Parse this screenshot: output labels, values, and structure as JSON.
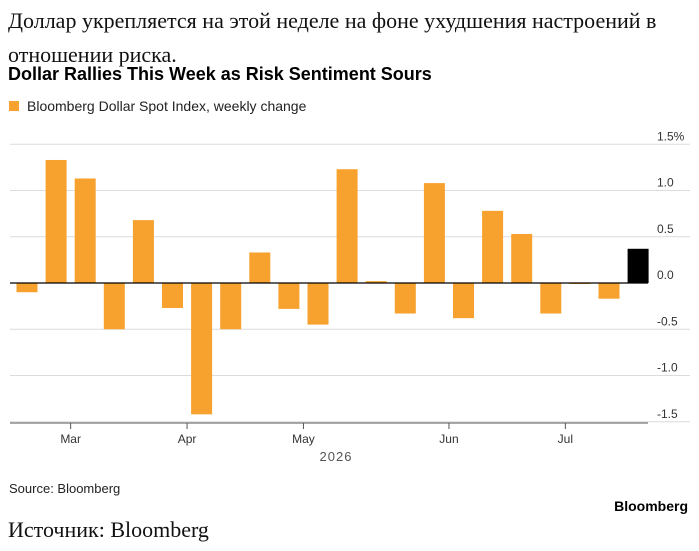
{
  "article": {
    "title_ru": "Доллар укрепляется на этой неделе на фоне ухудшения настроений в отношении риска.",
    "source_ru": "Источник: Bloomberg"
  },
  "chart": {
    "title": "Dollar Rallies This Week as Risk Sentiment Sours",
    "legend_label": "Bloomberg Dollar Spot Index, weekly change",
    "source": "Source: Bloomberg",
    "brand": "Bloomberg"
  },
  "colors": {
    "bar": "#f7a22e",
    "latest_bar": "#000000",
    "grid": "#dcdcdc",
    "zero_line": "#000000",
    "tick_text": "#333333"
  },
  "chart_data": {
    "type": "bar",
    "title": "Dollar Rallies This Week as Risk Sentiment Sours",
    "series": [
      {
        "name": "Bloomberg Dollar Spot Index, weekly change",
        "values": [
          -0.1,
          1.33,
          1.13,
          -0.5,
          0.68,
          -0.27,
          -1.42,
          -0.5,
          0.33,
          -0.28,
          -0.45,
          1.23,
          0.02,
          -0.33,
          1.08,
          -0.38,
          0.78,
          0.53,
          -0.33,
          0.0,
          -0.17,
          0.37
        ]
      }
    ],
    "highlight_last": true,
    "x_tick_labels": [
      "Mar",
      "Apr",
      "May",
      "Jun",
      "Jul"
    ],
    "x_tick_positions": [
      1.5,
      5.5,
      9.5,
      14.5,
      18.5
    ],
    "x_axis_year": "2026",
    "y_ticks": [
      1.5,
      1.0,
      0.5,
      0.0,
      -0.5,
      -1.0,
      -1.5
    ],
    "y_tick_labels": [
      "1.5%",
      "1.0",
      "0.5",
      "0.0",
      "-0.5",
      "-1.0",
      "-1.5"
    ],
    "ylim": [
      -1.5,
      1.5
    ],
    "grid": true,
    "y_axis_side": "right"
  }
}
